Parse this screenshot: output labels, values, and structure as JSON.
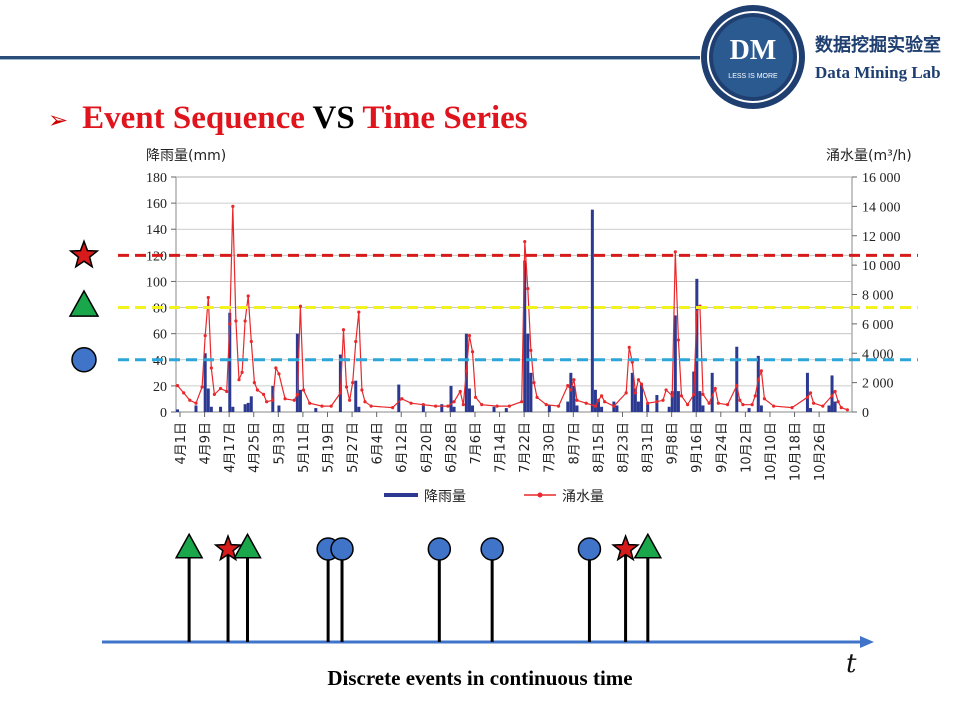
{
  "header": {
    "logo_text": "DM",
    "logo_motto": "LESS IS MORE",
    "lab_name_cn": "数据挖掘实验室",
    "lab_name_en": "Data Mining Lab",
    "brand_color": "#1f3f70"
  },
  "slide": {
    "title_part1": "Event Sequence",
    "title_vs": "VS",
    "title_part2": "Time Series",
    "caption": "Discrete events in continuous time",
    "time_symbol": "t"
  },
  "chart_data": {
    "type": "bar+line",
    "y_left_label": "降雨量(mm)",
    "y_right_label": "涌水量(m³/h)",
    "y_left_ticks": [
      "180",
      "160",
      "140",
      "120",
      "100",
      "80",
      "60",
      "40",
      "20",
      "0"
    ],
    "y_right_ticks": [
      "16 000",
      "14 000",
      "12 000",
      "10 000",
      "8 000",
      "6 000",
      "4 000",
      "2 000",
      "0"
    ],
    "ylim_left": [
      0,
      180
    ],
    "ylim_right": [
      0,
      16000
    ],
    "x_ticks": [
      "4月1日",
      "4月9日",
      "4月17日",
      "4月25日",
      "5月3日",
      "5月11日",
      "5月19日",
      "5月27日",
      "6月4日",
      "6月12日",
      "6月20日",
      "6月28日",
      "7月6日",
      "7月14日",
      "7月22日",
      "7月30日",
      "8月7日",
      "8月15日",
      "8月23日",
      "8月31日",
      "9月8日",
      "9月16日",
      "9月24日",
      "10月2日",
      "10月10日",
      "10月18日",
      "10月26日"
    ],
    "legend": [
      "降雨量",
      "涌水量"
    ],
    "colors": {
      "rain": "#2b3990",
      "flow": "#e8282b"
    },
    "rainfall": [
      [
        0,
        2
      ],
      [
        6,
        5
      ],
      [
        9,
        45
      ],
      [
        10,
        18
      ],
      [
        11,
        4
      ],
      [
        14,
        4
      ],
      [
        17,
        76
      ],
      [
        18,
        4
      ],
      [
        22,
        6
      ],
      [
        23,
        7
      ],
      [
        24,
        12
      ],
      [
        31,
        20
      ],
      [
        33,
        5
      ],
      [
        39,
        60
      ],
      [
        40,
        17
      ],
      [
        45,
        3
      ],
      [
        53,
        44
      ],
      [
        58,
        24
      ],
      [
        59,
        4
      ],
      [
        72,
        21
      ],
      [
        80,
        5
      ],
      [
        86,
        6
      ],
      [
        89,
        20
      ],
      [
        90,
        4
      ],
      [
        94,
        60
      ],
      [
        95,
        18
      ],
      [
        96,
        5
      ],
      [
        103,
        4
      ],
      [
        107,
        3
      ],
      [
        113,
        116
      ],
      [
        114,
        60
      ],
      [
        115,
        30
      ],
      [
        121,
        5
      ],
      [
        127,
        8
      ],
      [
        128,
        30
      ],
      [
        129,
        20
      ],
      [
        130,
        5
      ],
      [
        135,
        155
      ],
      [
        136,
        17
      ],
      [
        137,
        8
      ],
      [
        138,
        4
      ],
      [
        142,
        8
      ],
      [
        143,
        5
      ],
      [
        148,
        30
      ],
      [
        149,
        18
      ],
      [
        150,
        8
      ],
      [
        151,
        22
      ],
      [
        153,
        6
      ],
      [
        156,
        13
      ],
      [
        160,
        4
      ],
      [
        161,
        16
      ],
      [
        162,
        74
      ],
      [
        163,
        16
      ],
      [
        168,
        31
      ],
      [
        169,
        102
      ],
      [
        170,
        16
      ],
      [
        171,
        5
      ],
      [
        174,
        30
      ],
      [
        182,
        50
      ],
      [
        186,
        3
      ],
      [
        189,
        43
      ],
      [
        190,
        5
      ],
      [
        205,
        30
      ],
      [
        206,
        3
      ],
      [
        212,
        5
      ],
      [
        213,
        28
      ],
      [
        214,
        8
      ]
    ],
    "flow": [
      [
        0,
        1800
      ],
      [
        2,
        1300
      ],
      [
        4,
        800
      ],
      [
        6,
        600
      ],
      [
        8,
        1700
      ],
      [
        9,
        5200
      ],
      [
        10,
        7800
      ],
      [
        11,
        3000
      ],
      [
        12,
        1200
      ],
      [
        14,
        1600
      ],
      [
        16,
        1400
      ],
      [
        17,
        6000
      ],
      [
        18,
        14000
      ],
      [
        19,
        6200
      ],
      [
        20,
        2200
      ],
      [
        21,
        2700
      ],
      [
        22,
        6200
      ],
      [
        23,
        7900
      ],
      [
        24,
        4800
      ],
      [
        25,
        2000
      ],
      [
        26,
        1500
      ],
      [
        28,
        1200
      ],
      [
        29,
        700
      ],
      [
        31,
        800
      ],
      [
        32,
        3000
      ],
      [
        33,
        2600
      ],
      [
        35,
        900
      ],
      [
        38,
        800
      ],
      [
        39,
        1200
      ],
      [
        40,
        7200
      ],
      [
        41,
        1500
      ],
      [
        43,
        600
      ],
      [
        47,
        400
      ],
      [
        50,
        400
      ],
      [
        53,
        1300
      ],
      [
        54,
        5600
      ],
      [
        55,
        1700
      ],
      [
        56,
        800
      ],
      [
        57,
        2000
      ],
      [
        58,
        4800
      ],
      [
        59,
        6800
      ],
      [
        60,
        1500
      ],
      [
        61,
        700
      ],
      [
        63,
        400
      ],
      [
        70,
        300
      ],
      [
        73,
        900
      ],
      [
        76,
        600
      ],
      [
        80,
        500
      ],
      [
        84,
        400
      ],
      [
        88,
        400
      ],
      [
        90,
        700
      ],
      [
        92,
        1400
      ],
      [
        93,
        500
      ],
      [
        94,
        2800
      ],
      [
        95,
        5200
      ],
      [
        96,
        4100
      ],
      [
        97,
        1000
      ],
      [
        99,
        500
      ],
      [
        104,
        400
      ],
      [
        108,
        400
      ],
      [
        112,
        700
      ],
      [
        113,
        11600
      ],
      [
        114,
        8400
      ],
      [
        115,
        4200
      ],
      [
        116,
        2000
      ],
      [
        117,
        1000
      ],
      [
        120,
        500
      ],
      [
        124,
        400
      ],
      [
        127,
        1800
      ],
      [
        128,
        1500
      ],
      [
        129,
        2200
      ],
      [
        130,
        800
      ],
      [
        133,
        600
      ],
      [
        136,
        400
      ],
      [
        137,
        800
      ],
      [
        138,
        1100
      ],
      [
        139,
        700
      ],
      [
        142,
        400
      ],
      [
        146,
        1300
      ],
      [
        147,
        4400
      ],
      [
        148,
        3400
      ],
      [
        149,
        1300
      ],
      [
        150,
        2200
      ],
      [
        151,
        1900
      ],
      [
        153,
        600
      ],
      [
        156,
        700
      ],
      [
        158,
        800
      ],
      [
        159,
        1500
      ],
      [
        161,
        1100
      ],
      [
        162,
        10900
      ],
      [
        163,
        4900
      ],
      [
        164,
        1100
      ],
      [
        166,
        500
      ],
      [
        168,
        1200
      ],
      [
        169,
        6800
      ],
      [
        170,
        7200
      ],
      [
        171,
        1200
      ],
      [
        173,
        600
      ],
      [
        175,
        1600
      ],
      [
        176,
        600
      ],
      [
        179,
        500
      ],
      [
        182,
        1800
      ],
      [
        183,
        800
      ],
      [
        184,
        500
      ],
      [
        187,
        500
      ],
      [
        188,
        1100
      ],
      [
        189,
        2200
      ],
      [
        190,
        2800
      ],
      [
        191,
        900
      ],
      [
        194,
        400
      ],
      [
        200,
        300
      ],
      [
        205,
        1000
      ],
      [
        206,
        1300
      ],
      [
        207,
        600
      ],
      [
        210,
        400
      ],
      [
        213,
        1100
      ],
      [
        214,
        1400
      ],
      [
        215,
        700
      ],
      [
        216,
        300
      ],
      [
        218,
        150
      ]
    ],
    "thresholds_left_axis": [
      {
        "value": 120,
        "color": "#d71a1a",
        "marker": "star"
      },
      {
        "value": 80,
        "color": "#f2f21c",
        "marker": "triangle"
      },
      {
        "value": 40,
        "color": "#2ba6d9",
        "marker": "circle"
      }
    ]
  },
  "events": [
    {
      "day": 4,
      "marker": "triangle"
    },
    {
      "day": 18,
      "marker": "star"
    },
    {
      "day": 25,
      "marker": "triangle"
    },
    {
      "day": 54,
      "marker": "circle"
    },
    {
      "day": 59,
      "marker": "circle"
    },
    {
      "day": 94,
      "marker": "circle"
    },
    {
      "day": 113,
      "marker": "circle"
    },
    {
      "day": 148,
      "marker": "circle"
    },
    {
      "day": 161,
      "marker": "star"
    },
    {
      "day": 169,
      "marker": "triangle"
    }
  ],
  "marker_colors": {
    "triangle": "#1aa64a",
    "star": "#d71a1a",
    "circle": "#3f74c9",
    "axis": "#3f74c9"
  }
}
